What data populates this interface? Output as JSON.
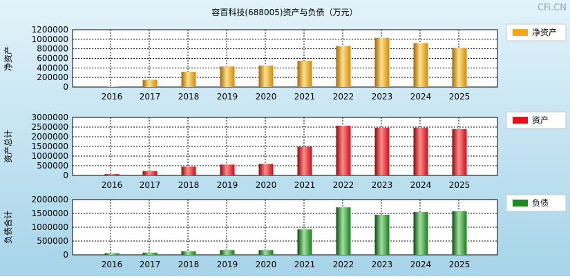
{
  "title": "容百科技(688005)资产与负债（万元）",
  "watermark": "CFi.CN",
  "colors": {
    "background_top": "#dcf0f8",
    "background_bottom": "#a9d6ea",
    "plot_bg": "#ffffff",
    "grid": "#000000",
    "net_assets": "#f3a81c",
    "assets": "#e8101a",
    "liabilities": "#1e8a1e"
  },
  "chart_data": [
    {
      "type": "bar",
      "ylabel": "净资产",
      "legend": "净资产",
      "categories": [
        "2016",
        "2017",
        "2018",
        "2019",
        "2020",
        "2021",
        "2022",
        "2023",
        "2024",
        "2025"
      ],
      "values": [
        5000,
        150000,
        320000,
        430000,
        450000,
        550000,
        860000,
        1030000,
        920000,
        820000
      ],
      "ylim": [
        0,
        1200000
      ],
      "yticks": [
        "0",
        "200000",
        "400000",
        "600000",
        "800000",
        "1000000",
        "1200000"
      ]
    },
    {
      "type": "bar",
      "ylabel": "资产总计",
      "legend": "资产",
      "categories": [
        "2016",
        "2017",
        "2018",
        "2019",
        "2020",
        "2021",
        "2022",
        "2023",
        "2024",
        "2025"
      ],
      "values": [
        70000,
        230000,
        450000,
        560000,
        600000,
        1480000,
        2570000,
        2470000,
        2470000,
        2400000
      ],
      "ylim": [
        0,
        3000000
      ],
      "yticks": [
        "0",
        "500000",
        "1000000",
        "1500000",
        "2000000",
        "2500000",
        "3000000"
      ]
    },
    {
      "type": "bar",
      "ylabel": "负债合计",
      "legend": "负债",
      "categories": [
        "2016",
        "2017",
        "2018",
        "2019",
        "2020",
        "2021",
        "2022",
        "2023",
        "2024",
        "2025"
      ],
      "values": [
        60000,
        80000,
        130000,
        170000,
        170000,
        920000,
        1720000,
        1450000,
        1550000,
        1580000
      ],
      "ylim": [
        0,
        2000000
      ],
      "yticks": [
        "0",
        "500000",
        "1000000",
        "1500000",
        "2000000"
      ]
    }
  ]
}
